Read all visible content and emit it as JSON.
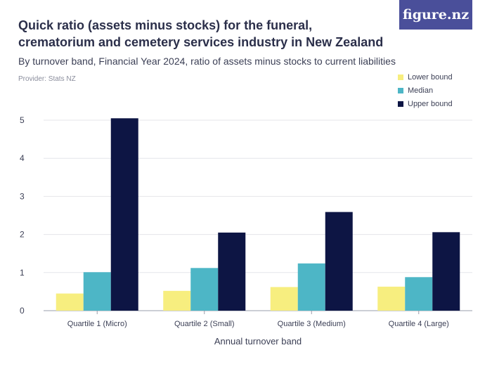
{
  "header": {
    "title": "Quick ratio (assets minus stocks) for the funeral, crematorium and cemetery services industry in New Zealand",
    "subtitle": "By turnover band, Financial Year 2024, ratio of assets minus stocks to current liabilities",
    "provider": "Provider: Stats NZ",
    "logo": "figure.nz"
  },
  "colors": {
    "lower": "#f7ee7f",
    "median": "#4db6c6",
    "upper": "#0d1544",
    "gridline": "#e4e5ea",
    "axis": "#9a9cab"
  },
  "chart_data": {
    "type": "bar",
    "categories": [
      "Quartile 1 (Micro)",
      "Quartile 2 (Small)",
      "Quartile 3 (Medium)",
      "Quartile 4 (Large)"
    ],
    "series": [
      {
        "name": "Lower bound",
        "values": [
          0.45,
          0.52,
          0.62,
          0.63
        ]
      },
      {
        "name": "Median",
        "values": [
          1.01,
          1.12,
          1.24,
          0.88
        ]
      },
      {
        "name": "Upper bound",
        "values": [
          5.05,
          2.05,
          2.59,
          2.06
        ]
      }
    ],
    "xlabel": "Annual turnover band",
    "ylabel": "",
    "ylim": [
      0,
      5
    ],
    "yticks": [
      0,
      1,
      2,
      3,
      4,
      5
    ],
    "grid": true,
    "legend": "top-right"
  }
}
